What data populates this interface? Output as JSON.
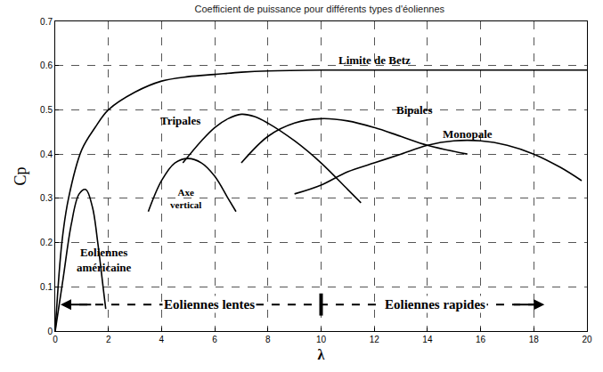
{
  "chart_data": {
    "type": "line",
    "title": "Coefficient de puissance pour différents types d'éoliennes",
    "x_label": "λ",
    "y_label": "Cp",
    "xlim": [
      0,
      20
    ],
    "ylim": [
      0,
      0.7
    ],
    "xticks": [
      0,
      2,
      4,
      6,
      8,
      10,
      12,
      14,
      16,
      18,
      20
    ],
    "yticks": [
      0,
      0.1,
      0.2,
      0.3,
      0.4,
      0.5,
      0.6,
      0.7
    ],
    "grid": true,
    "color": "#000000",
    "line_style": "solid",
    "series": [
      {
        "name": "Limite de Betz",
        "x": [
          0,
          0.25,
          0.5,
          1,
          1.5,
          2,
          3,
          4,
          5,
          6,
          7,
          8,
          10,
          20
        ],
        "values": [
          0,
          0.2,
          0.3,
          0.41,
          0.46,
          0.5,
          0.54,
          0.565,
          0.575,
          0.58,
          0.585,
          0.588,
          0.59,
          0.59
        ]
      },
      {
        "name": "Eoliennes américaine",
        "x": [
          0,
          0.3,
          0.6,
          0.9,
          1.15,
          1.4,
          1.6,
          1.8,
          1.9
        ],
        "values": [
          0,
          0.12,
          0.24,
          0.31,
          0.32,
          0.28,
          0.2,
          0.1,
          0.05
        ]
      },
      {
        "name": "Axe vertical",
        "x": [
          3.5,
          4,
          4.5,
          5,
          5.5,
          6,
          6.5,
          6.8
        ],
        "values": [
          0.27,
          0.34,
          0.38,
          0.39,
          0.38,
          0.35,
          0.3,
          0.27
        ]
      },
      {
        "name": "Tripales",
        "x": [
          4.8,
          5.5,
          6,
          6.5,
          7,
          7.5,
          8,
          9,
          10,
          11,
          11.5
        ],
        "values": [
          0.38,
          0.43,
          0.46,
          0.48,
          0.49,
          0.485,
          0.47,
          0.43,
          0.38,
          0.32,
          0.29
        ]
      },
      {
        "name": "Bipales",
        "x": [
          7,
          8,
          9,
          10,
          11,
          12,
          13,
          14,
          15.5
        ],
        "values": [
          0.38,
          0.44,
          0.47,
          0.48,
          0.475,
          0.46,
          0.44,
          0.42,
          0.4
        ]
      },
      {
        "name": "Monopale",
        "x": [
          9,
          10,
          11,
          12,
          13,
          14,
          15,
          16,
          17,
          18,
          19,
          19.8
        ],
        "values": [
          0.31,
          0.33,
          0.36,
          0.38,
          0.4,
          0.42,
          0.43,
          0.43,
          0.42,
          0.4,
          0.37,
          0.34
        ]
      }
    ],
    "annotations": [
      "Eoliennes lentes",
      "Eoliennes rapides"
    ]
  }
}
